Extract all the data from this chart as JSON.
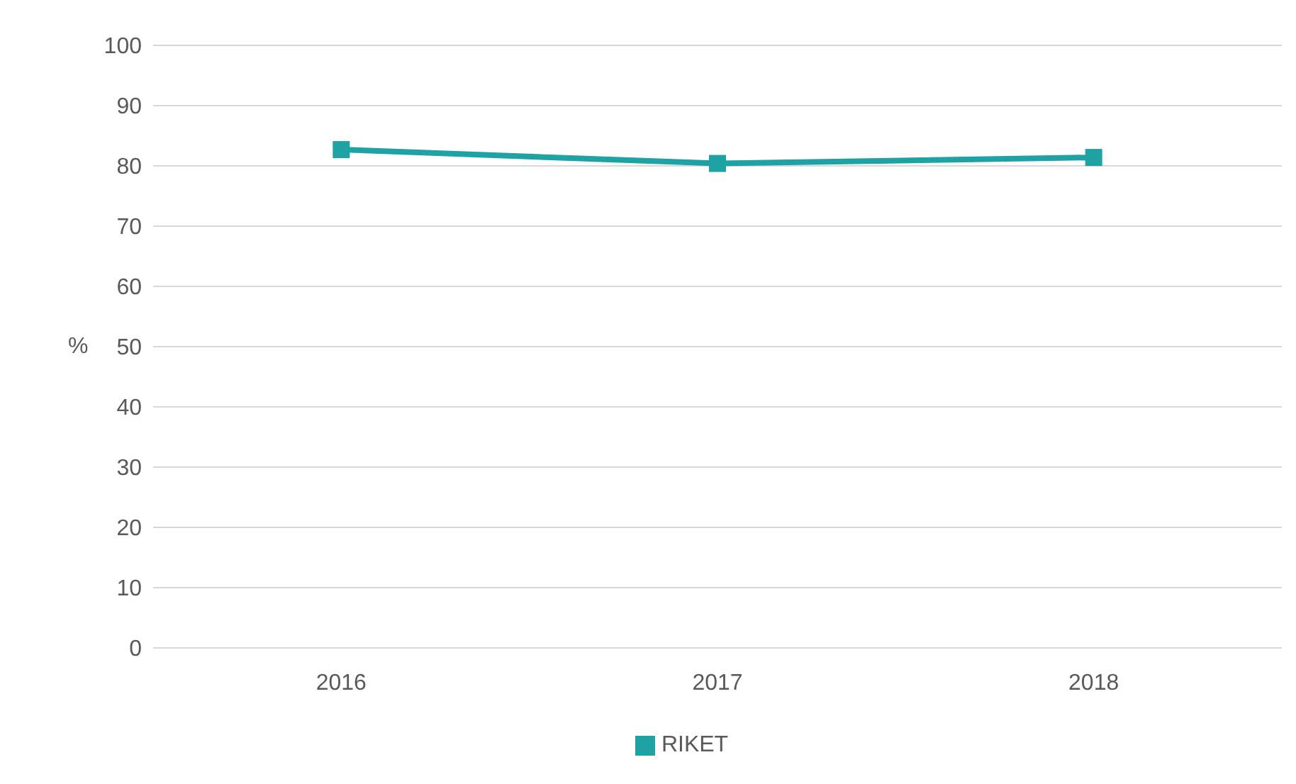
{
  "chart_data": {
    "type": "line",
    "ylabel": "%",
    "categories": [
      "2016",
      "2017",
      "2018"
    ],
    "series": [
      {
        "name": "RIKET",
        "color": "#1fa2a3",
        "values": [
          82.7,
          80.4,
          81.4
        ]
      }
    ],
    "ylim": [
      0,
      100
    ],
    "yticks": [
      0,
      10,
      20,
      30,
      40,
      50,
      60,
      70,
      80,
      90,
      100
    ],
    "grid": "y",
    "legend": "bottom",
    "marker": "square",
    "line_style": "solid"
  }
}
